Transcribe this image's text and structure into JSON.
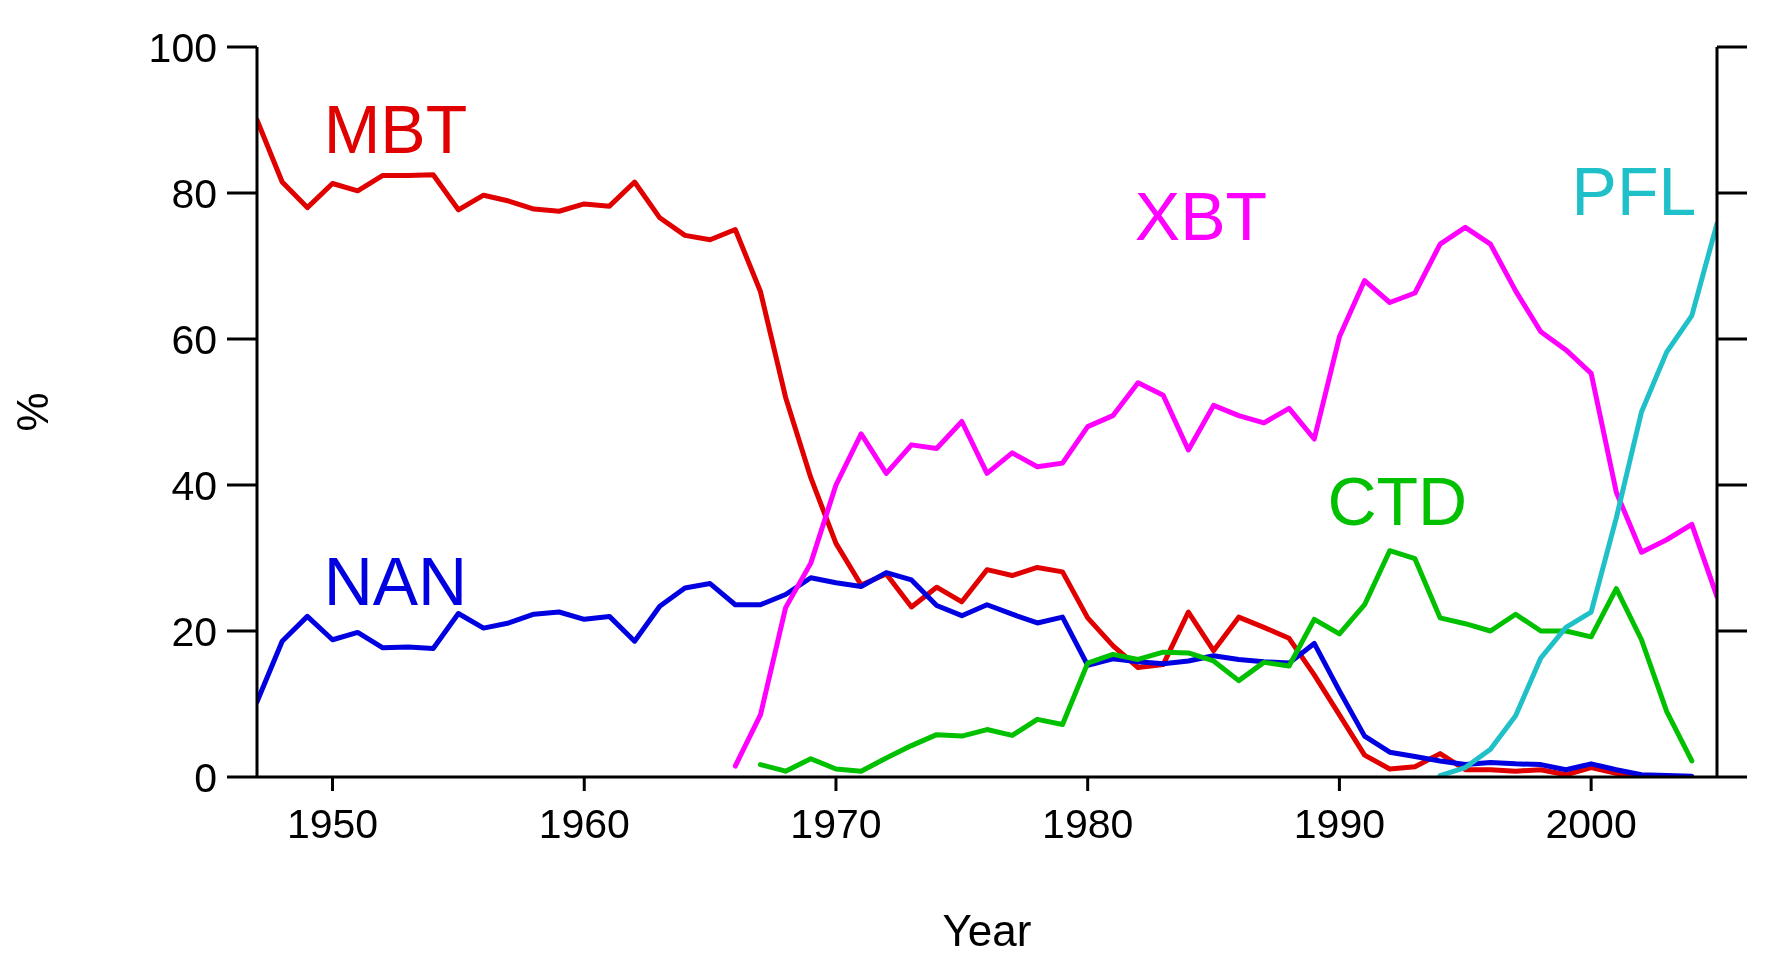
{
  "chart_data": {
    "type": "line",
    "xlabel": "Year",
    "ylabel": "%",
    "xlim": [
      1947,
      2005
    ],
    "xticks": [
      1950,
      1960,
      1970,
      1980,
      1990,
      2000
    ],
    "ylim": [
      0,
      100
    ],
    "yticks": [
      0,
      20,
      40,
      60,
      80,
      100
    ],
    "grid": false,
    "legend": false,
    "marker": "none",
    "line_style": "solid",
    "series": [
      {
        "name": "MBT",
        "color": "#e00000",
        "x": [
          1947,
          1948,
          1949,
          1950,
          1951,
          1952,
          1953,
          1954,
          1955,
          1956,
          1957,
          1958,
          1959,
          1960,
          1961,
          1962,
          1963,
          1964,
          1965,
          1966,
          1967,
          1968,
          1969,
          1970,
          1971,
          1972,
          1973,
          1974,
          1975,
          1976,
          1977,
          1978,
          1979,
          1980,
          1981,
          1982,
          1983,
          1984,
          1985,
          1986,
          1987,
          1988,
          1989,
          1990,
          1991,
          1992,
          1993,
          1994,
          1995,
          1996,
          1997,
          1998,
          1999,
          2000,
          2001,
          2002
        ],
        "values": [
          90,
          81.5,
          78,
          81.3,
          80.3,
          82.4,
          82.4,
          82.5,
          77.7,
          79.7,
          78.9,
          77.8,
          77.5,
          78.5,
          78.2,
          81.5,
          76.6,
          74.2,
          73.6,
          75,
          66.5,
          52,
          41,
          32,
          26.3,
          27.8,
          23.3,
          26,
          24,
          28.4,
          27.6,
          28.7,
          28.1,
          21.8,
          18,
          15,
          15.4,
          22.6,
          17.3,
          21.9,
          20.5,
          19,
          14,
          8.5,
          3,
          1.1,
          1.4,
          3.2,
          1,
          1,
          0.8,
          1,
          0.3,
          1.3,
          0.5,
          0
        ]
      },
      {
        "name": "NAN",
        "color": "#0000e0",
        "x": [
          1947,
          1948,
          1949,
          1950,
          1951,
          1952,
          1953,
          1954,
          1955,
          1956,
          1957,
          1958,
          1959,
          1960,
          1961,
          1962,
          1963,
          1964,
          1965,
          1966,
          1967,
          1968,
          1969,
          1970,
          1971,
          1972,
          1973,
          1974,
          1975,
          1976,
          1977,
          1978,
          1979,
          1980,
          1981,
          1982,
          1983,
          1984,
          1985,
          1986,
          1987,
          1988,
          1989,
          1990,
          1991,
          1992,
          1993,
          1994,
          1995,
          1996,
          1997,
          1998,
          1999,
          2000,
          2001,
          2002,
          2003,
          2004
        ],
        "values": [
          10.3,
          18.6,
          22,
          18.8,
          19.8,
          17.7,
          17.8,
          17.6,
          22.4,
          20.4,
          21.1,
          22.3,
          22.6,
          21.6,
          22,
          18.6,
          23.4,
          25.9,
          26.5,
          23.6,
          23.6,
          25,
          27.3,
          26.6,
          26.1,
          28,
          27,
          23.5,
          22.1,
          23.6,
          22.3,
          21.1,
          21.9,
          15.3,
          16.2,
          15.8,
          15.5,
          15.9,
          16.6,
          16.1,
          15.8,
          15.6,
          18.3,
          11.8,
          5.6,
          3.4,
          2.8,
          2.2,
          1.7,
          2,
          1.8,
          1.7,
          1,
          1.8,
          1,
          0.3,
          0.2,
          0.1
        ]
      },
      {
        "name": "XBT",
        "color": "#ff00ff",
        "x": [
          1966,
          1967,
          1968,
          1969,
          1970,
          1971,
          1972,
          1973,
          1974,
          1975,
          1976,
          1977,
          1978,
          1979,
          1980,
          1981,
          1982,
          1983,
          1984,
          1985,
          1986,
          1987,
          1988,
          1989,
          1990,
          1991,
          1992,
          1993,
          1994,
          1995,
          1996,
          1997,
          1998,
          1999,
          2000,
          2001,
          2002,
          2003,
          2004,
          2005
        ],
        "values": [
          1.5,
          8.5,
          23.2,
          29.3,
          40,
          47,
          41.6,
          45.5,
          45,
          48.7,
          41.6,
          44.4,
          42.5,
          43,
          48,
          49.5,
          54,
          52.3,
          44.8,
          50.9,
          49.5,
          48.5,
          50.5,
          46.3,
          60.3,
          68,
          65,
          66.3,
          73,
          75.3,
          73,
          66.6,
          61,
          58.5,
          55.3,
          39,
          30.8,
          32.5,
          34.6,
          24.7
        ]
      },
      {
        "name": "CTD",
        "color": "#00c000",
        "x": [
          1967,
          1968,
          1969,
          1970,
          1971,
          1972,
          1973,
          1974,
          1975,
          1976,
          1977,
          1978,
          1979,
          1980,
          1981,
          1982,
          1983,
          1984,
          1985,
          1986,
          1987,
          1988,
          1989,
          1990,
          1991,
          1992,
          1993,
          1994,
          1995,
          1996,
          1997,
          1998,
          1999,
          2000,
          2001,
          2002,
          2003,
          2004
        ],
        "values": [
          1.7,
          0.8,
          2.5,
          1.1,
          0.8,
          2.6,
          4.3,
          5.8,
          5.6,
          6.5,
          5.7,
          7.9,
          7.2,
          15.6,
          16.8,
          16.1,
          17.1,
          17,
          15.9,
          13.2,
          15.7,
          15.2,
          21.6,
          19.6,
          23.6,
          31,
          29.9,
          21.8,
          21,
          20,
          22.3,
          20,
          20,
          19.2,
          25.8,
          18.8,
          9,
          2.2
        ]
      },
      {
        "name": "PFL",
        "color": "#20c0c8",
        "x": [
          1994,
          1995,
          1996,
          1997,
          1998,
          1999,
          2000,
          2001,
          2002,
          2003,
          2004,
          2005
        ],
        "values": [
          0.2,
          1.3,
          3.8,
          8.4,
          16.3,
          20.5,
          22.6,
          35.5,
          50,
          58.2,
          63.2,
          75.8
        ]
      }
    ]
  }
}
